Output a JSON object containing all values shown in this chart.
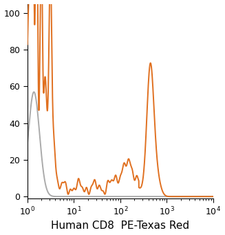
{
  "title": "",
  "xlabel": "Human CD8  PE-Texas Red",
  "ylabel": "",
  "xlim_log": [
    1,
    10000
  ],
  "ylim": [
    -1,
    105
  ],
  "yticks": [
    0,
    20,
    40,
    60,
    80,
    100
  ],
  "line_color_orange": "#E07020",
  "line_color_gray": "#AAAAAA",
  "background_color": "#FFFFFF",
  "xlabel_fontsize": 11,
  "ytick_fontsize": 9,
  "xtick_fontsize": 9,
  "linewidth": 1.4
}
